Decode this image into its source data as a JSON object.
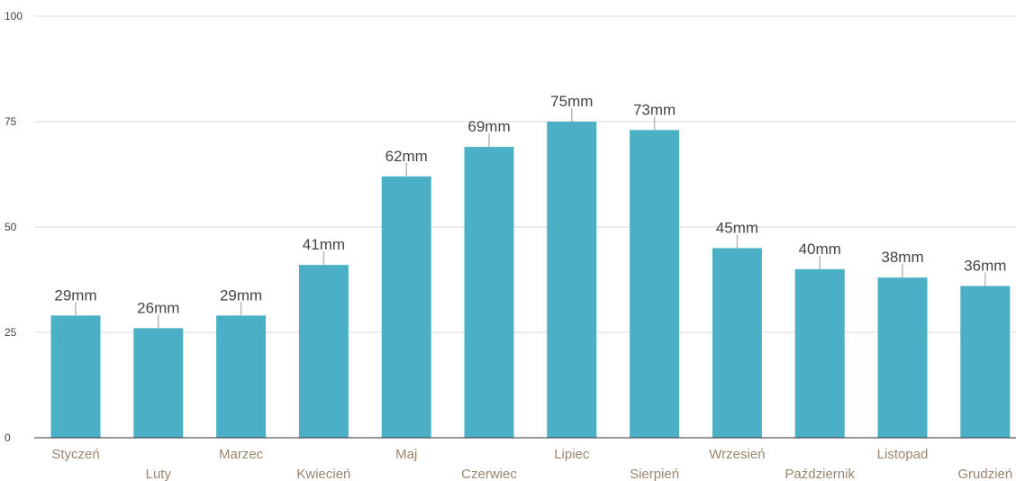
{
  "chart_data": {
    "type": "bar",
    "categories": [
      "Styczeń",
      "Luty",
      "Marzec",
      "Kwiecień",
      "Maj",
      "Czerwiec",
      "Lipiec",
      "Sierpień",
      "Wrzesień",
      "Październik",
      "Listopad",
      "Grudzień"
    ],
    "values": [
      29,
      26,
      29,
      41,
      62,
      69,
      75,
      73,
      45,
      40,
      38,
      36
    ],
    "data_labels": [
      "29mm",
      "26mm",
      "29mm",
      "41mm",
      "62mm",
      "69mm",
      "75mm",
      "73mm",
      "45mm",
      "40mm",
      "38mm",
      "36mm"
    ],
    "y_ticks": [
      0,
      25,
      50,
      75,
      100
    ],
    "ylim": [
      0,
      100
    ],
    "grid": true,
    "legend": "none",
    "title": "",
    "xlabel": "",
    "ylabel": "",
    "colors": {
      "bar": "#4bb0c5",
      "grid": "#d9d9d9",
      "axis": "#333333",
      "tick_text": "#444444",
      "category_text": "#9c8570",
      "label_text": "#444444",
      "leader": "#b8b8b8"
    }
  }
}
